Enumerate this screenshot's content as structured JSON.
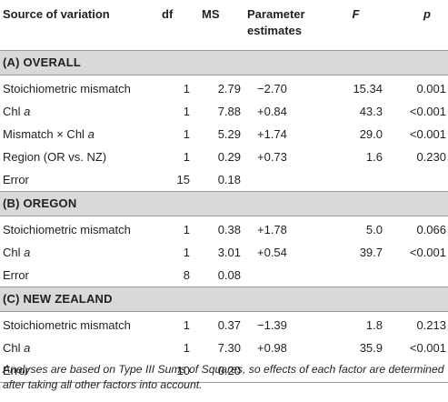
{
  "header": {
    "source": "Source of variation",
    "df": "df",
    "ms": "MS",
    "pe_line1": "Parameter",
    "pe_line2": "estimates",
    "f": "F",
    "p": "p"
  },
  "sections": [
    {
      "title": "(A) OVERALL",
      "rows": [
        {
          "source": "Stoichiometric mismatch",
          "df": "1",
          "ms": "2.79",
          "pe": "−2.70",
          "f": "15.34",
          "p": "0.001"
        },
        {
          "source_pre": "Chl ",
          "source_ital": "a",
          "df": "1",
          "ms": "7.88",
          "pe": "+0.84",
          "f": "43.3",
          "p": "<0.001"
        },
        {
          "source_pre": "Mismatch × Chl ",
          "source_ital": "a",
          "df": "1",
          "ms": "5.29",
          "pe": "+1.74",
          "f": "29.0",
          "p": "<0.001"
        },
        {
          "source": "Region (OR vs. NZ)",
          "df": "1",
          "ms": "0.29",
          "pe": "+0.73",
          "f": "1.6",
          "p": "0.230"
        },
        {
          "source": "Error",
          "df": "15",
          "ms": "0.18",
          "pe": "",
          "f": "",
          "p": ""
        }
      ]
    },
    {
      "title": "(B) OREGON",
      "rows": [
        {
          "source": "Stoichiometric mismatch",
          "df": "1",
          "ms": "0.38",
          "pe": "+1.78",
          "f": "5.0",
          "p": "0.066"
        },
        {
          "source_pre": "Chl ",
          "source_ital": "a",
          "df": "1",
          "ms": "3.01",
          "pe": "+0.54",
          "f": "39.7",
          "p": "<0.001"
        },
        {
          "source": "Error",
          "df": "8",
          "ms": "0.08",
          "pe": "",
          "f": "",
          "p": ""
        }
      ]
    },
    {
      "title": "(C) NEW ZEALAND",
      "rows": [
        {
          "source": "Stoichiometric mismatch",
          "df": "1",
          "ms": "0.37",
          "pe": "−1.39",
          "f": "1.8",
          "p": "0.213"
        },
        {
          "source_pre": "Chl ",
          "source_ital": "a",
          "df": "1",
          "ms": "7.30",
          "pe": "+0.98",
          "f": "35.9",
          "p": "<0.001"
        },
        {
          "source": "Error",
          "df": "10",
          "ms": "0.20",
          "pe": "",
          "f": "",
          "p": ""
        }
      ]
    }
  ],
  "footnote": "Analyses are based on Type III Sums of Squares, so effects of each factor are determined after taking all other factors into account."
}
